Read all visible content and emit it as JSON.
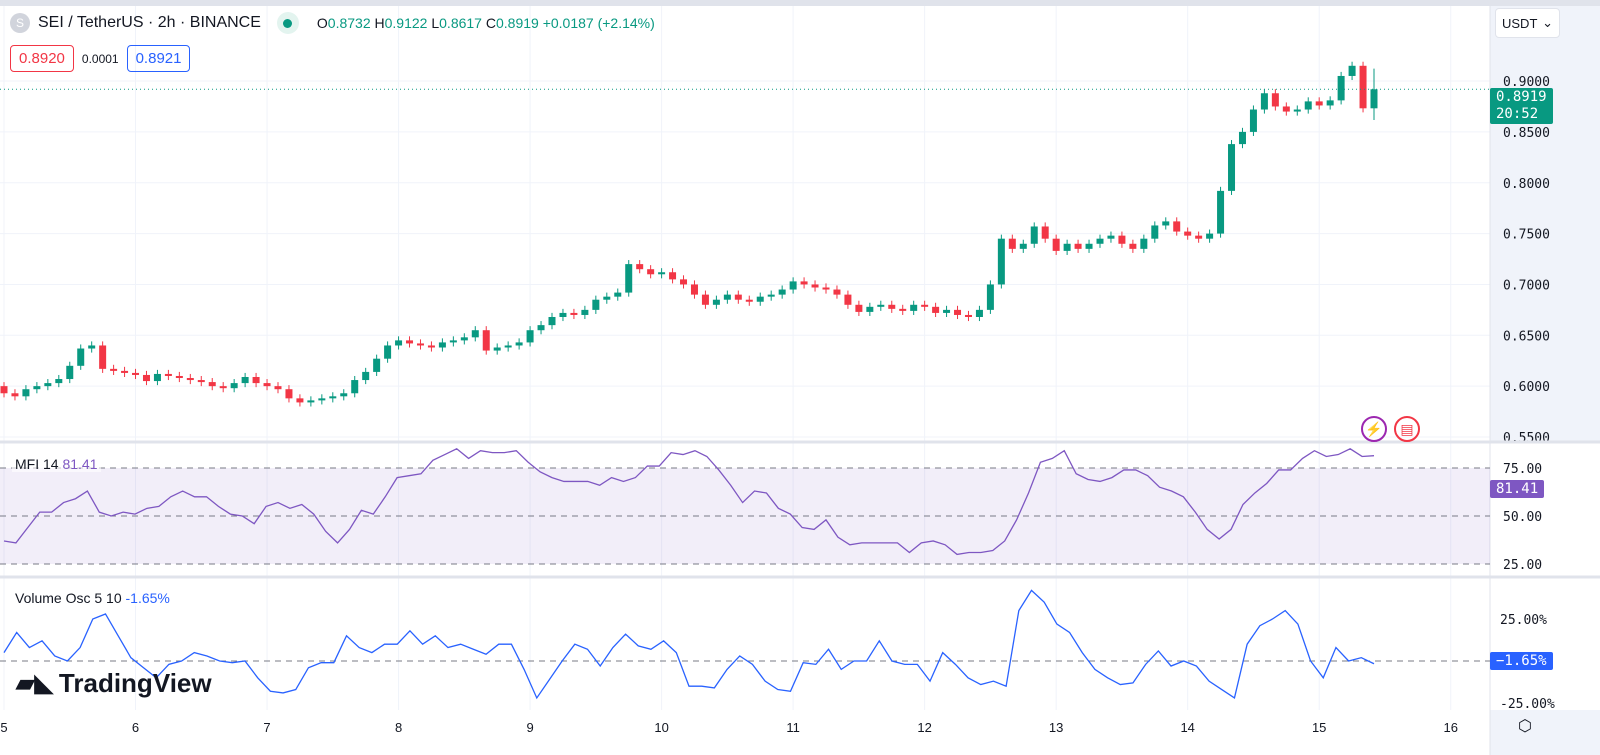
{
  "header": {
    "symbol_initial": "S",
    "title": "SEI / TetherUS · 2h · BINANCE",
    "o_label": "O",
    "o": "0.8732",
    "h_label": "H",
    "h": "0.9122",
    "l_label": "L",
    "l": "0.8617",
    "c_label": "C",
    "c": "0.8919",
    "change": "+0.0187 (+2.14%)"
  },
  "trade": {
    "sell": "0.8920",
    "spread": "0.0001",
    "buy": "0.8921"
  },
  "currency": "USDT",
  "last_price": {
    "price": "0.8919",
    "countdown": "20:52"
  },
  "mfi": {
    "label": "MFI 14",
    "value": "81.41",
    "tag": "81.41"
  },
  "volosc": {
    "label": "Volume Osc 5 10",
    "value": "-1.65%",
    "tag": "−1.65%"
  },
  "logo": "TradingView",
  "colors": {
    "up": "#089981",
    "down": "#f23645",
    "mfi": "#7e57c2",
    "vol": "#2962ff"
  },
  "chart_data": {
    "type": "candlestick",
    "title": "SEI / TetherUS · 2h · BINANCE",
    "price_ticks": [
      0.55,
      0.6,
      0.65,
      0.7,
      0.75,
      0.8,
      0.85,
      0.9
    ],
    "price_range": [
      0.55,
      0.9
    ],
    "x_ticks": [
      {
        "label": "5",
        "index": 0
      },
      {
        "label": "6",
        "index": 12
      },
      {
        "label": "7",
        "index": 24
      },
      {
        "label": "8",
        "index": 36
      },
      {
        "label": "9",
        "index": 48
      },
      {
        "label": "10",
        "index": 60
      },
      {
        "label": "11",
        "index": 72
      },
      {
        "label": "12",
        "index": 84
      },
      {
        "label": "13",
        "index": 96
      },
      {
        "label": "14",
        "index": 108
      },
      {
        "label": "15",
        "index": 120
      },
      {
        "label": "16",
        "index": 132
      }
    ],
    "first_open": 0.6,
    "closes": [
      0.593,
      0.59,
      0.597,
      0.6,
      0.603,
      0.607,
      0.62,
      0.637,
      0.64,
      0.617,
      0.615,
      0.613,
      0.611,
      0.605,
      0.612,
      0.61,
      0.608,
      0.606,
      0.604,
      0.6,
      0.598,
      0.603,
      0.609,
      0.603,
      0.6,
      0.597,
      0.588,
      0.584,
      0.586,
      0.588,
      0.59,
      0.593,
      0.606,
      0.614,
      0.627,
      0.64,
      0.645,
      0.642,
      0.64,
      0.638,
      0.643,
      0.645,
      0.648,
      0.655,
      0.635,
      0.638,
      0.64,
      0.643,
      0.655,
      0.66,
      0.668,
      0.672,
      0.67,
      0.675,
      0.685,
      0.688,
      0.692,
      0.72,
      0.715,
      0.71,
      0.712,
      0.705,
      0.7,
      0.69,
      0.68,
      0.685,
      0.69,
      0.685,
      0.683,
      0.688,
      0.69,
      0.695,
      0.703,
      0.7,
      0.697,
      0.695,
      0.69,
      0.68,
      0.673,
      0.678,
      0.68,
      0.676,
      0.674,
      0.68,
      0.678,
      0.672,
      0.675,
      0.67,
      0.668,
      0.675,
      0.7,
      0.745,
      0.735,
      0.74,
      0.757,
      0.745,
      0.733,
      0.74,
      0.735,
      0.74,
      0.745,
      0.748,
      0.74,
      0.735,
      0.745,
      0.758,
      0.762,
      0.752,
      0.748,
      0.745,
      0.75,
      0.792,
      0.838,
      0.85,
      0.872,
      0.888,
      0.875,
      0.87,
      0.872,
      0.88,
      0.876,
      0.881,
      0.905,
      0.915,
      0.8732,
      0.8919
    ],
    "last_candle": {
      "open": 0.8732,
      "high": 0.9122,
      "low": 0.8617,
      "close": 0.8919
    },
    "mfi": {
      "name": "MFI 14",
      "range": [
        25,
        75
      ],
      "levels": [
        25,
        50,
        75
      ],
      "tick_labels": [
        "75.00",
        "50.00",
        "25.00"
      ],
      "values": [
        37,
        36,
        44,
        52,
        52,
        57,
        59,
        63,
        52,
        50,
        52,
        51,
        54,
        55,
        60,
        63,
        60,
        60,
        55,
        51,
        50,
        46,
        55,
        57,
        54,
        56,
        51,
        42,
        36,
        43,
        53,
        51,
        60,
        70,
        71,
        72,
        79,
        82,
        85,
        80,
        84,
        83,
        83,
        84,
        78,
        73,
        70,
        68,
        68,
        68,
        66,
        70,
        68,
        70,
        76,
        76,
        83,
        82,
        84,
        81,
        74,
        66,
        57,
        63,
        62,
        54,
        51,
        44,
        43,
        48,
        39,
        35,
        36,
        36,
        36,
        36,
        31,
        36,
        37,
        35,
        30,
        31,
        31,
        32,
        37,
        48,
        62,
        78,
        80,
        84,
        72,
        69,
        68,
        70,
        74,
        74,
        71,
        65,
        63,
        60,
        52,
        43,
        38,
        43,
        56,
        62,
        67,
        74,
        74,
        80,
        84,
        81,
        82,
        85,
        81,
        81.41
      ]
    },
    "volume_osc": {
      "name": "Volume Osc 5 10",
      "range": [
        -25,
        25
      ],
      "tick_labels": [
        "25.00%",
        "-25.00%"
      ],
      "values": [
        5,
        17,
        8,
        12,
        3,
        0,
        8,
        25,
        28,
        15,
        2,
        -4,
        -10,
        -2,
        0,
        5,
        3,
        0,
        -1,
        0,
        -10,
        -18,
        -19,
        -17,
        -4,
        -1,
        -1,
        15,
        8,
        5,
        10,
        10,
        18,
        10,
        15,
        8,
        10,
        7,
        4,
        10,
        10,
        -5,
        -22,
        -11,
        0,
        10,
        7,
        -3,
        8,
        16,
        9,
        7,
        12,
        5,
        -15,
        -15,
        -16,
        -5,
        3,
        -2,
        -12,
        -17,
        -18,
        -1,
        -2,
        7,
        -5,
        0,
        0,
        12,
        0,
        -2,
        -2,
        -12,
        5,
        -2,
        -10,
        -14,
        -12,
        -15,
        30,
        42,
        35,
        22,
        17,
        5,
        -5,
        -10,
        -14,
        -13,
        -2,
        6,
        -3,
        0,
        -3,
        -12,
        -17,
        -22,
        10,
        21,
        25,
        30,
        22,
        0,
        -10,
        8,
        0,
        2,
        -1.65
      ]
    }
  }
}
